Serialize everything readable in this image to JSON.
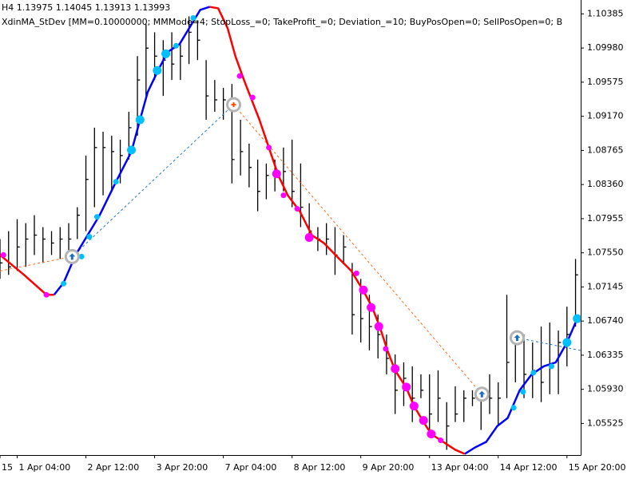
{
  "chart_data": {
    "type": "hlc",
    "header": "H4  1.13975 1.14045 1.13913 1.13993",
    "subtitle": "XdinMA_StDev [MM=0.10000000; MMMode=4; StopLoss_=0; TakeProfit_=0; Deviation_=10; BuyPosOpen=0; SellPosOpen=0; B",
    "bar_color": "#000000",
    "xlim": [
      -2,
      65.6
    ],
    "ylim": [
      1.0515,
      1.1055
    ],
    "xticks": [
      {
        "value": -2,
        "label": "15"
      },
      {
        "value": 0,
        "label": "1 Apr 04:00"
      },
      {
        "value": 8,
        "label": "2 Apr 12:00"
      },
      {
        "value": 16,
        "label": "3 Apr 20:00"
      },
      {
        "value": 24,
        "label": "7 Apr 04:00"
      },
      {
        "value": 32,
        "label": "8 Apr 12:00"
      },
      {
        "value": 40,
        "label": "9 Apr 20:00"
      },
      {
        "value": 48,
        "label": "13 Apr 04:00"
      },
      {
        "value": 56,
        "label": "14 Apr 12:00"
      },
      {
        "value": 64,
        "label": "15 Apr 20:00"
      }
    ],
    "yticks": [
      1.10385,
      {
        "value": 1.0998,
        "label": "1.09980"
      },
      1.09575,
      {
        "value": 1.0917,
        "label": "1.09170"
      },
      1.08765,
      {
        "value": 1.0836,
        "label": "1.08360"
      },
      1.07955,
      {
        "value": 1.0755,
        "label": "1.07550"
      },
      1.07145,
      {
        "value": 1.0674,
        "label": "1.06740"
      },
      1.06335,
      {
        "value": 1.0593,
        "label": "1.05930"
      },
      1.05525
    ],
    "x": [
      -2,
      -1,
      0,
      1,
      2,
      3,
      4,
      5,
      6,
      7,
      8,
      9,
      10,
      11,
      12,
      13,
      14,
      15,
      16,
      17,
      18,
      19,
      20,
      21,
      22,
      23,
      24,
      25,
      26,
      27,
      28,
      29,
      30,
      31,
      32,
      33,
      34,
      35,
      36,
      37,
      38,
      39,
      40,
      41,
      42,
      43,
      44,
      45,
      46,
      47,
      48,
      49,
      50,
      51,
      52,
      53,
      54,
      55,
      56,
      57,
      58,
      59,
      60,
      61,
      62,
      63,
      64,
      65
    ],
    "high": [
      1.07713,
      1.07807,
      1.07949,
      1.07902,
      1.07996,
      1.07855,
      1.07807,
      1.07855,
      1.07902,
      1.08091,
      1.08704,
      1.09035,
      1.08987,
      1.0894,
      1.08893,
      1.09223,
      1.09884,
      1.10262,
      1.10167,
      1.10073,
      1.10167,
      1.10026,
      1.10356,
      1.10309,
      1.09837,
      1.09601,
      1.09507,
      1.09554,
      1.09129,
      1.08846,
      1.08657,
      1.0861,
      1.08657,
      1.08799,
      1.08893,
      1.0861,
      1.08138,
      1.07855,
      1.07902,
      1.07855,
      1.0776,
      1.0743,
      1.07241,
      1.07052,
      1.06816,
      1.0658,
      1.06344,
      1.0625,
      1.06203,
      1.06108,
      1.06108,
      1.06155,
      1.05778,
      1.05966,
      1.05919,
      1.05919,
      1.05919,
      1.06108,
      1.06013,
      1.07052,
      1.06627,
      1.0658,
      1.06486,
      1.06675,
      1.06722,
      1.06627,
      1.06911,
      1.07477
    ],
    "low": [
      1.07241,
      1.07288,
      1.07335,
      1.07383,
      1.07524,
      1.0743,
      1.07524,
      1.07477,
      1.07524,
      1.07713,
      1.07807,
      1.08091,
      1.08232,
      1.08279,
      1.08374,
      1.08657,
      1.0894,
      1.09412,
      1.09601,
      1.09412,
      1.09601,
      1.09601,
      1.0979,
      1.09837,
      1.09129,
      1.09223,
      1.09129,
      1.08374,
      1.08468,
      1.08327,
      1.08043,
      1.08185,
      1.08279,
      1.08279,
      1.08091,
      1.07855,
      1.07713,
      1.07571,
      1.07524,
      1.07288,
      1.0743,
      1.0658,
      1.06486,
      1.06392,
      1.06297,
      1.06108,
      1.05637,
      1.05731,
      1.05542,
      1.05825,
      1.05448,
      1.05542,
      1.05212,
      1.05542,
      1.05542,
      1.05731,
      1.05448,
      1.05637,
      1.05495,
      1.05825,
      1.06013,
      1.05825,
      1.05825,
      1.05778,
      1.05872,
      1.05872,
      1.06203,
      1.06675
    ],
    "close": [
      1.0743,
      1.07383,
      1.07619,
      1.07713,
      1.0776,
      1.07713,
      1.07666,
      1.07713,
      1.07713,
      1.07996,
      1.08421,
      1.08799,
      1.08799,
      1.08751,
      1.08704,
      1.09035,
      1.09601,
      1.09979,
      1.09884,
      1.09837,
      1.0979,
      1.09884,
      1.10167,
      1.10073,
      1.09412,
      1.09365,
      1.09365,
      1.08657,
      1.08751,
      1.08563,
      1.08279,
      1.08468,
      1.08468,
      1.08515,
      1.08279,
      1.08091,
      1.07807,
      1.07713,
      1.07713,
      1.07524,
      1.07619,
      1.06816,
      1.06769,
      1.06675,
      1.0658,
      1.06297,
      1.05919,
      1.06061,
      1.05825,
      1.05919,
      1.05637,
      1.05825,
      1.05495,
      1.05637,
      1.05825,
      1.05825,
      1.05825,
      1.05825,
      1.05825,
      1.0625,
      1.06486,
      1.06108,
      1.06155,
      1.06013,
      1.06203,
      1.06486,
      1.0658,
      1.07288
    ],
    "line_x": [
      -2,
      0.8,
      3.4,
      4.3,
      5.4,
      6.8,
      8.2,
      9.6,
      11.5,
      13.3,
      14.3,
      15.2,
      16.4,
      17.5,
      18.9,
      20.3,
      21.3,
      22.4,
      23.4,
      24.5,
      25.4,
      26.4,
      27.3,
      28.2,
      29.3,
      30.4,
      31.5,
      32.9,
      34.3,
      35.7,
      37.5,
      38.9,
      40.3,
      41.3,
      42.2,
      43.1,
      44.0,
      45.3,
      46.2,
      47.3,
      48.2,
      49.6,
      51.0,
      52.1,
      53.3,
      54.6,
      55.9,
      57.1,
      58.5,
      59.9,
      61.3,
      62.7,
      64.0,
      65.2
    ],
    "lines": [
      {
        "color": "#ff0000",
        "values": [
          1.07524,
          1.07288,
          1.07052,
          1.07052,
          null,
          null,
          null,
          null,
          null,
          null,
          null,
          null,
          null,
          null,
          null,
          null,
          null,
          1.10469,
          1.10451,
          1.10215,
          1.09884,
          1.09601,
          1.09365,
          1.09129,
          1.08799,
          1.08468,
          1.08232,
          1.08043,
          1.0776,
          1.07666,
          1.07477,
          1.07335,
          1.07099,
          1.06911,
          1.06675,
          1.06392,
          1.06155,
          1.05948,
          1.05731,
          1.05542,
          1.054,
          1.05306,
          1.05212,
          1.05164,
          null,
          null,
          null,
          null,
          null,
          null,
          null,
          null,
          null,
          null
        ]
      },
      {
        "color": "#0000ff",
        "values": [
          null,
          null,
          null,
          1.07052,
          1.07194,
          1.07524,
          1.0776,
          1.07996,
          1.08393,
          1.08751,
          1.09129,
          1.09459,
          1.09714,
          1.09931,
          1.10026,
          1.10262,
          1.10432,
          1.10469,
          null,
          null,
          null,
          null,
          null,
          null,
          null,
          null,
          null,
          null,
          null,
          null,
          null,
          null,
          null,
          null,
          null,
          null,
          null,
          null,
          null,
          null,
          null,
          null,
          null,
          1.05164,
          1.0524,
          1.05306,
          1.05495,
          1.05589,
          1.0592,
          1.06108,
          1.06203,
          1.0625,
          1.06486,
          1.06769
        ]
      }
    ],
    "dots": [
      {
        "color": "#ff00ff",
        "marker_size": 3.5,
        "x": [
          -1.6,
          3.4,
          25.9,
          27.4,
          29.3,
          31.0,
          32.6,
          39.5,
          42.9,
          49.3
        ],
        "y": [
          1.07524,
          1.07052,
          1.09648,
          1.09393,
          1.08799,
          1.08232,
          1.08072,
          1.07307,
          1.0641,
          1.05325
        ]
      },
      {
        "color": "#ff00ff",
        "marker_size": 5.5,
        "x": [
          30.2,
          34.0,
          40.3,
          41.2,
          42.1,
          44.0,
          45.3,
          46.2,
          47.3,
          48.2
        ],
        "y": [
          1.08487,
          1.07732,
          1.07109,
          1.06901,
          1.06675,
          1.06174,
          1.05957,
          1.05731,
          1.05561,
          1.054
        ]
      },
      {
        "color": "#00bfff",
        "marker_size": 3.5,
        "x": [
          5.4,
          7.5,
          8.4,
          9.3,
          11.5,
          18.5,
          20.5,
          57.8,
          58.9,
          60.1,
          62.2
        ],
        "y": [
          1.07184,
          1.07505,
          1.07741,
          1.07977,
          1.08393,
          1.10007,
          1.10337,
          1.05712,
          1.05901,
          1.06127,
          1.06203
        ]
      },
      {
        "color": "#00bfff",
        "marker_size": 5.5,
        "x": [
          13.3,
          14.3,
          16.3,
          17.3,
          64.0,
          65.2
        ],
        "y": [
          1.0877,
          1.09129,
          1.09714,
          1.09912,
          1.06486,
          1.06769
        ]
      }
    ],
    "trade_lines": [
      {
        "color": "#ff6a1a",
        "x": [
          -2,
          6.4
        ],
        "y": [
          1.07335,
          1.07505
        ]
      },
      {
        "color": "#1e78c8",
        "x": [
          6.4,
          25.2
        ],
        "y": [
          1.07505,
          1.09308
        ]
      },
      {
        "color": "#ff6a1a",
        "x": [
          25.2,
          54.1
        ],
        "y": [
          1.09308,
          1.05872
        ]
      },
      {
        "color": "#1e78c8",
        "x": [
          58.2,
          65.6
        ],
        "y": [
          1.06542,
          1.06391
        ]
      }
    ],
    "trade_markers": {
      "x": [
        6.4,
        25.2,
        54.1,
        58.2
      ],
      "y": [
        1.07505,
        1.09308,
        1.05872,
        1.06542
      ],
      "colors": [
        "#1e6fc0",
        "#ff4500",
        "#1e6fc0",
        "#1e6fc0"
      ]
    }
  }
}
